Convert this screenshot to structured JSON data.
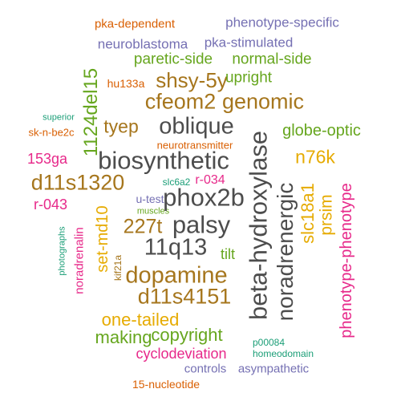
{
  "colors": {
    "dark_gray": "#4d4d4d",
    "brown": "#a6761d",
    "green": "#66a61e",
    "purple": "#7570b3",
    "magenta": "#e7298a",
    "orange": "#d95f02",
    "teal": "#1b9e77",
    "gold": "#e6ab02"
  },
  "words": [
    "pka-dependent",
    "phenotype-specific",
    "neuroblastoma",
    "pka-stimulated",
    "paretic-side",
    "normal-side",
    "hu133a",
    "shsy-5y",
    "upright",
    "cfeom2",
    "genomic",
    "superior",
    "tyep",
    "oblique",
    "globe-optic",
    "sk-n-be2c",
    "neurotransmitter",
    "n76k",
    "153ga",
    "biosynthetic",
    "d11s1320",
    "slc6a2",
    "r-034",
    "r-043",
    "u-test",
    "muscles",
    "phox2b",
    "227t",
    "palsy",
    "11q13",
    "tilt",
    "photographs",
    "kif21a",
    "dopamine",
    "d11s4151",
    "one-tailed",
    "making",
    "copyright",
    "cyclodeviation",
    "p00084",
    "homeodomain",
    "controls",
    "asympathetic",
    "15-nucleotide",
    "1124del15",
    "set-md10",
    "noradrenalin",
    "beta-hydroxylase",
    "noradrenergic",
    "slc18a1",
    "prsim",
    "phenotype-phenotype"
  ]
}
